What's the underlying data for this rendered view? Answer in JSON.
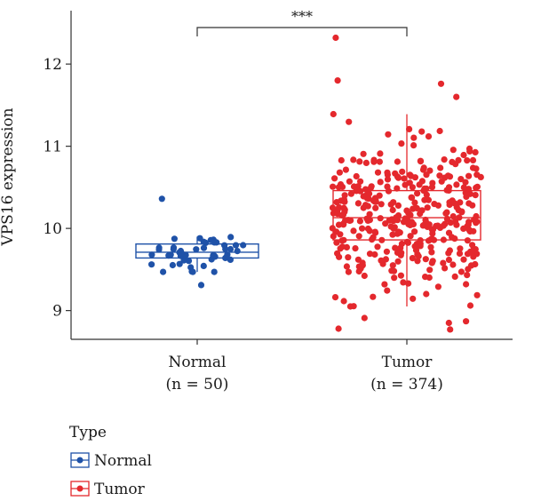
{
  "chart_data": {
    "type": "box",
    "ylabel": "VPS16 expression",
    "ylim": [
      8.65,
      12.65
    ],
    "yticks": [
      9,
      10,
      11,
      12
    ],
    "significance_label": "***",
    "categories": [
      {
        "label": "Normal",
        "n_label": "(n = 50)"
      },
      {
        "label": "Tumor",
        "n_label": "(n = 374)"
      }
    ],
    "series": [
      {
        "name": "Normal",
        "color": "#1f52a8",
        "box": {
          "whisker_low": 9.47,
          "q1": 9.64,
          "median": 9.71,
          "q3": 9.81,
          "whisker_high": 9.9
        },
        "outliers": [
          10.36,
          9.31
        ],
        "point_count": 50
      },
      {
        "name": "Tumor",
        "color": "#e4282d",
        "box": {
          "whisker_low": 9.05,
          "q1": 9.86,
          "median": 10.13,
          "q3": 10.46,
          "whisker_high": 11.39
        },
        "outliers": [
          12.32,
          11.8,
          11.76,
          11.6,
          8.91,
          8.87,
          8.85,
          8.78,
          8.77
        ],
        "point_count": 374
      }
    ],
    "legend": {
      "title": "Type",
      "position": "bottom-left",
      "items": [
        "Normal",
        "Tumor"
      ]
    }
  }
}
